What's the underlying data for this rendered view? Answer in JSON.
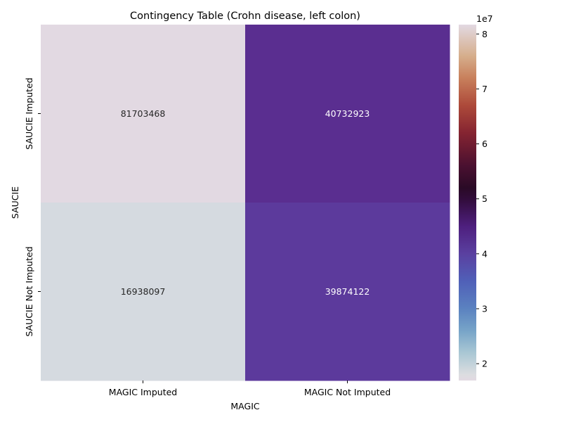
{
  "chart_data": {
    "type": "heatmap",
    "title": "Contingency Table (Crohn disease, left colon)",
    "xlabel": "MAGIC",
    "ylabel": "SAUCIE",
    "x_categories": [
      "MAGIC Imputed",
      "MAGIC Not Imputed"
    ],
    "y_categories": [
      "SAUCIE Imputed",
      "SAUCIE Not Imputed"
    ],
    "values": [
      [
        81703468,
        40732923
      ],
      [
        16938097,
        39874122
      ]
    ],
    "cell_labels": [
      [
        "81703468",
        "40732923"
      ],
      [
        "16938097",
        "39874122"
      ]
    ],
    "colormap": "twilight_shifted",
    "colorbar": {
      "range": [
        16938097,
        81703468
      ],
      "ticks": [
        2,
        3,
        4,
        5,
        6,
        7,
        8
      ],
      "tick_labels": [
        "2",
        "3",
        "4",
        "5",
        "6",
        "7",
        "8"
      ],
      "multiplier": "1e7"
    },
    "cell_colors": [
      [
        "#e2d9e2",
        "#5a2e90"
      ],
      [
        "#d5dae0",
        "#5c3a9c"
      ]
    ],
    "colorbar_gradient": [
      {
        "v": 16938097,
        "color": "#e2d9e2"
      },
      {
        "v": 18000000,
        "color": "#dcdde0"
      },
      {
        "v": 22000000,
        "color": "#a9c7d4"
      },
      {
        "v": 26000000,
        "color": "#77a4c8"
      },
      {
        "v": 30000000,
        "color": "#5b82c0"
      },
      {
        "v": 35000000,
        "color": "#5060b8"
      },
      {
        "v": 40000000,
        "color": "#5a40a0"
      },
      {
        "v": 45000000,
        "color": "#4e1f7e"
      },
      {
        "v": 50000000,
        "color": "#310c3a"
      },
      {
        "v": 52000000,
        "color": "#2a0a26"
      },
      {
        "v": 56000000,
        "color": "#4a1030"
      },
      {
        "v": 62000000,
        "color": "#852431"
      },
      {
        "v": 67000000,
        "color": "#ad4a3a"
      },
      {
        "v": 72000000,
        "color": "#c8805c"
      },
      {
        "v": 76000000,
        "color": "#d6ae8c"
      },
      {
        "v": 81703468,
        "color": "#e2d9e2"
      }
    ]
  }
}
